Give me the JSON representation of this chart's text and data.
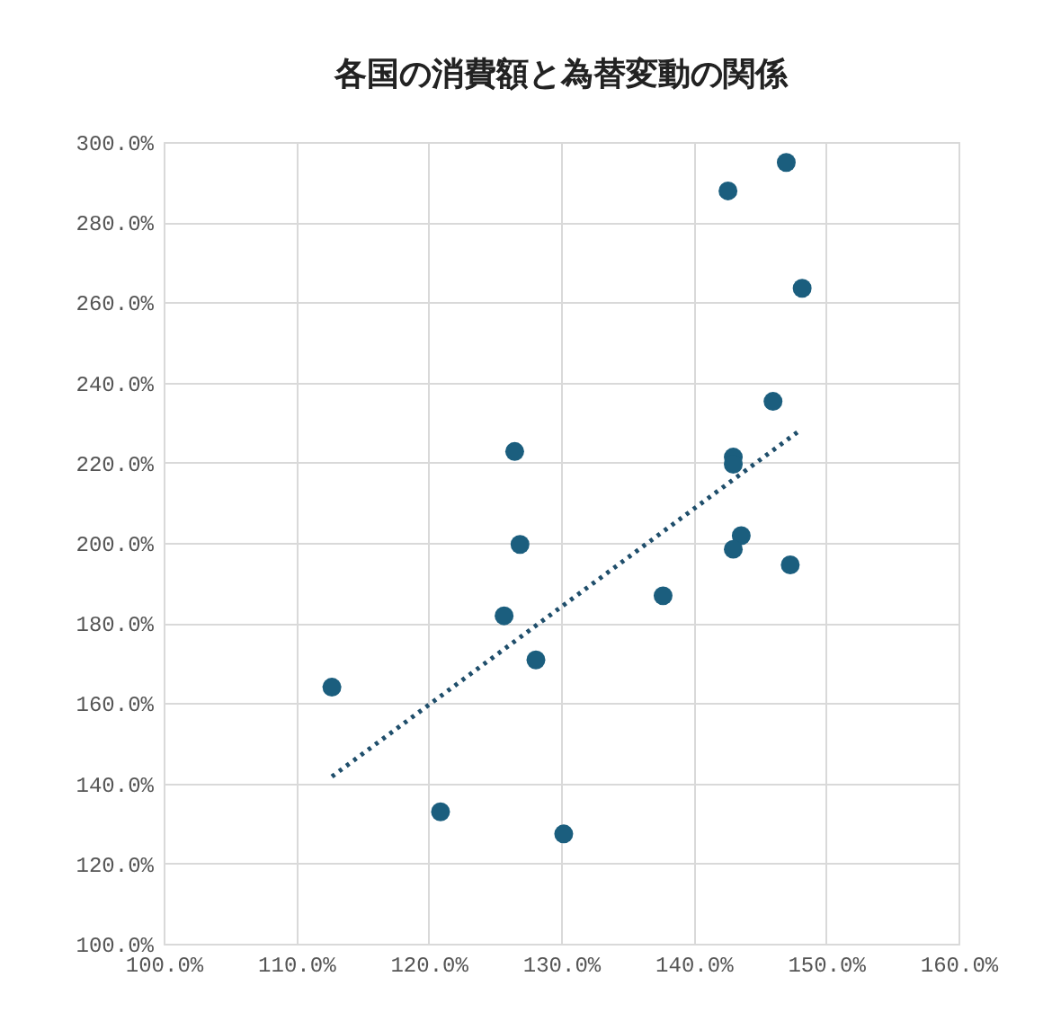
{
  "chart_data": {
    "type": "scatter",
    "title": "各国の消費額と為替変動の関係",
    "series": [
      {
        "color": "#1b5e7e",
        "marker": "circle",
        "x": [
          112.7,
          120.9,
          126.5,
          126.9,
          125.7,
          128.1,
          130.2,
          137.7,
          142.6,
          147.0,
          148.2,
          146.0,
          143.0,
          143.0,
          143.6,
          143.0,
          147.3
        ],
        "values": [
          164.0,
          132.9,
          222.8,
          199.6,
          181.8,
          170.8,
          127.4,
          186.8,
          287.8,
          294.9,
          263.5,
          235.3,
          221.4,
          219.6,
          201.8,
          198.4,
          194.5
        ]
      },
      {
        "type": "line",
        "color": "#1f4e6b",
        "line_style": "dotted",
        "marker": "none",
        "x": [
          112.7,
          148.0
        ],
        "values": [
          141.7,
          228.0
        ]
      }
    ],
    "xlim": [
      100,
      160
    ],
    "xticks": [
      {
        "value": 100,
        "label": "100.0%"
      },
      {
        "value": 110,
        "label": "110.0%"
      },
      {
        "value": 120,
        "label": "120.0%"
      },
      {
        "value": 130,
        "label": "130.0%"
      },
      {
        "value": 140,
        "label": "140.0%"
      },
      {
        "value": 150,
        "label": "150.0%"
      },
      {
        "value": 160,
        "label": "160.0%"
      }
    ],
    "ylim": [
      100,
      300
    ],
    "yticks": [
      {
        "value": 100,
        "label": "100.0%"
      },
      {
        "value": 120,
        "label": "120.0%"
      },
      {
        "value": 140,
        "label": "140.0%"
      },
      {
        "value": 160,
        "label": "160.0%"
      },
      {
        "value": 180,
        "label": "180.0%"
      },
      {
        "value": 200,
        "label": "200.0%"
      },
      {
        "value": 220,
        "label": "220.0%"
      },
      {
        "value": 240,
        "label": "240.0%"
      },
      {
        "value": 260,
        "label": "260.0%"
      },
      {
        "value": 280,
        "label": "280.0%"
      },
      {
        "value": 300,
        "label": "300.0%"
      }
    ],
    "grid": true,
    "legend": false
  }
}
